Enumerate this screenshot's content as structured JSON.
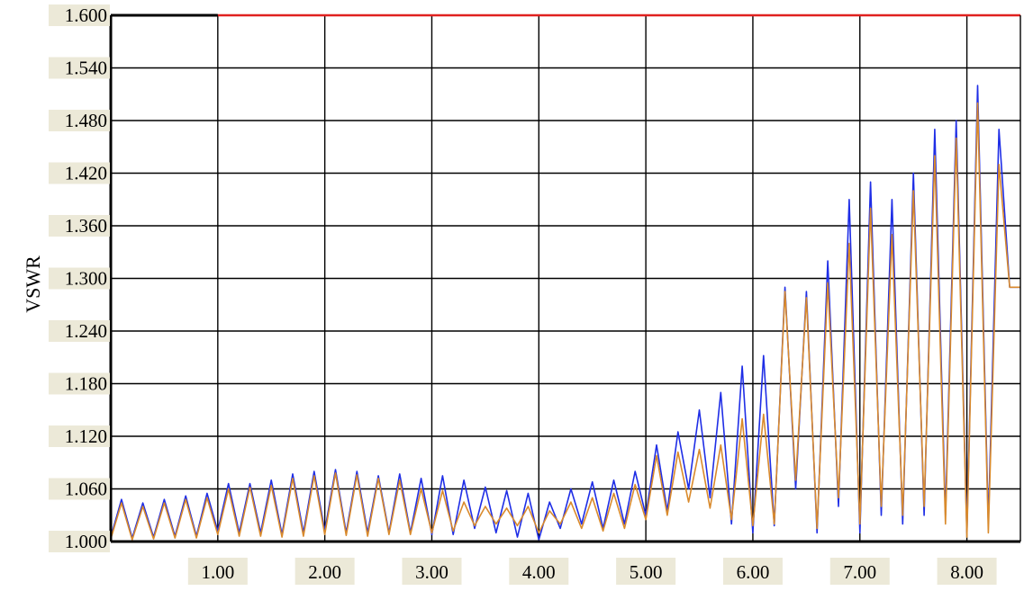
{
  "chart_data": {
    "type": "line",
    "title": "",
    "xlabel": "",
    "ylabel": "VSWR",
    "xlim": [
      0.0,
      8.5
    ],
    "ylim": [
      1.0,
      1.6
    ],
    "grid": true,
    "x_ticks": [
      "1.00",
      "2.00",
      "3.00",
      "4.00",
      "5.00",
      "6.00",
      "7.00",
      "8.00"
    ],
    "y_ticks": [
      "1.000",
      "1.060",
      "1.120",
      "1.180",
      "1.240",
      "1.300",
      "1.360",
      "1.420",
      "1.480",
      "1.540",
      "1.600"
    ],
    "series": [
      {
        "color": "#1f2ee6",
        "x": [
          0.0,
          0.1,
          0.2,
          0.3,
          0.4,
          0.5,
          0.6,
          0.7,
          0.8,
          0.9,
          1.0,
          1.1,
          1.2,
          1.3,
          1.4,
          1.5,
          1.6,
          1.7,
          1.8,
          1.9,
          2.0,
          2.1,
          2.2,
          2.3,
          2.4,
          2.5,
          2.6,
          2.7,
          2.8,
          2.9,
          3.0,
          3.1,
          3.2,
          3.3,
          3.4,
          3.5,
          3.6,
          3.7,
          3.8,
          3.9,
          4.0,
          4.1,
          4.2,
          4.3,
          4.4,
          4.5,
          4.6,
          4.7,
          4.8,
          4.9,
          5.0,
          5.1,
          5.2,
          5.3,
          5.4,
          5.5,
          5.6,
          5.7,
          5.8,
          5.9,
          6.0,
          6.1,
          6.2,
          6.3,
          6.4,
          6.5,
          6.6,
          6.7,
          6.8,
          6.9,
          7.0,
          7.1,
          7.2,
          7.3,
          7.4,
          7.5,
          7.6,
          7.7,
          7.8,
          7.9,
          8.0,
          8.1,
          8.2,
          8.3,
          8.4,
          8.5
        ],
        "values": [
          1.005,
          1.048,
          1.004,
          1.044,
          1.005,
          1.048,
          1.006,
          1.052,
          1.006,
          1.055,
          1.012,
          1.066,
          1.01,
          1.066,
          1.01,
          1.07,
          1.008,
          1.077,
          1.01,
          1.08,
          1.012,
          1.082,
          1.01,
          1.08,
          1.01,
          1.075,
          1.01,
          1.077,
          1.01,
          1.072,
          1.008,
          1.075,
          1.008,
          1.07,
          1.015,
          1.062,
          1.01,
          1.058,
          1.005,
          1.055,
          1.002,
          1.045,
          1.015,
          1.06,
          1.02,
          1.068,
          1.015,
          1.07,
          1.02,
          1.08,
          1.03,
          1.11,
          1.035,
          1.125,
          1.06,
          1.15,
          1.05,
          1.17,
          1.02,
          1.2,
          1.01,
          1.212,
          1.018,
          1.29,
          1.06,
          1.285,
          1.01,
          1.32,
          1.04,
          1.39,
          1.01,
          1.41,
          1.03,
          1.39,
          1.02,
          1.42,
          1.03,
          1.47,
          1.03,
          1.48,
          1.01,
          1.52,
          1.02,
          1.47,
          1.29,
          1.29
        ]
      },
      {
        "color": "#d98a2c",
        "x": [
          0.0,
          0.1,
          0.2,
          0.3,
          0.4,
          0.5,
          0.6,
          0.7,
          0.8,
          0.9,
          1.0,
          1.1,
          1.2,
          1.3,
          1.4,
          1.5,
          1.6,
          1.7,
          1.8,
          1.9,
          2.0,
          2.1,
          2.2,
          2.3,
          2.4,
          2.5,
          2.6,
          2.7,
          2.8,
          2.9,
          3.0,
          3.1,
          3.2,
          3.3,
          3.4,
          3.5,
          3.6,
          3.7,
          3.8,
          3.9,
          4.0,
          4.1,
          4.2,
          4.3,
          4.4,
          4.5,
          4.6,
          4.7,
          4.8,
          4.9,
          5.0,
          5.1,
          5.2,
          5.3,
          5.4,
          5.5,
          5.6,
          5.7,
          5.8,
          5.9,
          6.0,
          6.1,
          6.2,
          6.3,
          6.4,
          6.5,
          6.6,
          6.7,
          6.8,
          6.9,
          7.0,
          7.1,
          7.2,
          7.3,
          7.4,
          7.5,
          7.6,
          7.7,
          7.8,
          7.9,
          8.0,
          8.1,
          8.2,
          8.3,
          8.4,
          8.5
        ],
        "values": [
          1.003,
          1.044,
          1.002,
          1.04,
          1.003,
          1.044,
          1.004,
          1.048,
          1.004,
          1.05,
          1.008,
          1.06,
          1.006,
          1.062,
          1.006,
          1.064,
          1.005,
          1.072,
          1.006,
          1.075,
          1.008,
          1.078,
          1.007,
          1.076,
          1.006,
          1.072,
          1.008,
          1.07,
          1.008,
          1.06,
          1.01,
          1.058,
          1.012,
          1.045,
          1.018,
          1.04,
          1.02,
          1.038,
          1.018,
          1.04,
          1.01,
          1.035,
          1.02,
          1.045,
          1.015,
          1.05,
          1.012,
          1.055,
          1.015,
          1.065,
          1.025,
          1.098,
          1.03,
          1.102,
          1.045,
          1.105,
          1.038,
          1.11,
          1.025,
          1.14,
          1.018,
          1.145,
          1.02,
          1.285,
          1.07,
          1.278,
          1.015,
          1.295,
          1.05,
          1.34,
          1.02,
          1.38,
          1.04,
          1.35,
          1.03,
          1.4,
          1.04,
          1.44,
          1.02,
          1.46,
          1.005,
          1.5,
          1.01,
          1.43,
          1.29,
          1.29
        ]
      },
      {
        "color": "#e0211f",
        "x": [
          1.0,
          8.5
        ],
        "values": [
          1.6,
          1.6
        ]
      }
    ]
  }
}
